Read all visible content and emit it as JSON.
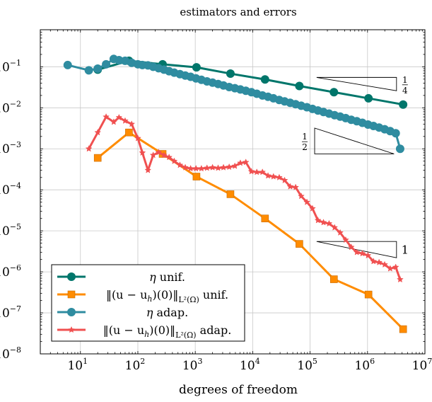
{
  "chart_data": {
    "type": "line",
    "title": "estimators and errors",
    "xlabel": "degrees of freedom",
    "ylabel": "",
    "xscale": "log",
    "yscale": "log",
    "xlim": [
      2,
      10000000
    ],
    "ylim": [
      1e-08,
      0.8
    ],
    "grid": true,
    "legend_position": "bottom-left",
    "x_tick_labels": [
      {
        "value": 10,
        "base": "10",
        "exp": "1"
      },
      {
        "value": 100,
        "base": "10",
        "exp": "2"
      },
      {
        "value": 1000,
        "base": "10",
        "exp": "3"
      },
      {
        "value": 10000,
        "base": "10",
        "exp": "4"
      },
      {
        "value": 100000,
        "base": "10",
        "exp": "5"
      },
      {
        "value": 1000000,
        "base": "10",
        "exp": "6"
      },
      {
        "value": 10000000,
        "base": "10",
        "exp": "7"
      }
    ],
    "y_tick_labels": [
      {
        "value": 1e-08,
        "base": "10",
        "exp": "−8"
      },
      {
        "value": 1e-07,
        "base": "10",
        "exp": "−7"
      },
      {
        "value": 1e-06,
        "base": "10",
        "exp": "−6"
      },
      {
        "value": 1e-05,
        "base": "10",
        "exp": "−5"
      },
      {
        "value": 0.0001,
        "base": "10",
        "exp": "−4"
      },
      {
        "value": 0.001,
        "base": "10",
        "exp": "−3"
      },
      {
        "value": 0.01,
        "base": "10",
        "exp": "−2"
      },
      {
        "value": 0.1,
        "base": "10",
        "exp": "−1"
      }
    ],
    "series": [
      {
        "name": "η unif.",
        "legend": {
          "pre": "η",
          "post": " unif."
        },
        "color": "#00766b",
        "marker": "circle",
        "x": [
          20,
          70,
          270,
          1050,
          4100,
          16400,
          65000,
          260000,
          1040000,
          4170000
        ],
        "y": [
          0.085,
          0.14,
          0.115,
          0.097,
          0.068,
          0.049,
          0.034,
          0.024,
          0.017,
          0.012
        ]
      },
      {
        "name": "‖(u − u_h)(0)‖_{L²(Ω)} unif.",
        "legend": {
          "pre": "‖(u − u",
          "sub1": "h",
          "mid": ")(0)‖",
          "sub2": "L²(Ω)",
          "post": " unif."
        },
        "color": "#ff8c00",
        "marker": "square",
        "x": [
          20,
          70,
          270,
          1050,
          4100,
          16400,
          65000,
          260000,
          1040000,
          4170000
        ],
        "y": [
          0.0006,
          0.0025,
          0.00075,
          0.00021,
          7.8e-05,
          2e-05,
          4.8e-06,
          6.6e-07,
          2.8e-07,
          4e-08
        ]
      },
      {
        "name": "η adap.",
        "legend": {
          "pre": "η",
          "post": " adap."
        },
        "color": "#2f8ca0",
        "marker": "circle",
        "x": [
          6,
          14,
          20,
          28,
          38,
          47,
          60,
          78,
          100,
          120,
          150,
          185,
          230,
          285,
          350,
          430,
          540,
          670,
          830,
          1030,
          1280,
          1600,
          2000,
          2500,
          3100,
          3900,
          4900,
          6100,
          7600,
          9500,
          11800,
          14800,
          18500,
          23000,
          29000,
          36000,
          45000,
          56000,
          70000,
          88000,
          110000,
          137000,
          171000,
          214000,
          267000,
          334000,
          417000,
          521000,
          651000,
          814000,
          1020000,
          1270000,
          1590000,
          1990000,
          2480000,
          3100000,
          3700000
        ],
        "y": [
          0.11,
          0.082,
          0.09,
          0.115,
          0.155,
          0.145,
          0.14,
          0.125,
          0.115,
          0.11,
          0.108,
          0.1,
          0.092,
          0.085,
          0.078,
          0.072,
          0.066,
          0.061,
          0.057,
          0.052,
          0.048,
          0.044,
          0.041,
          0.038,
          0.035,
          0.032,
          0.03,
          0.028,
          0.026,
          0.024,
          0.022,
          0.02,
          0.0185,
          0.017,
          0.0155,
          0.0143,
          0.0132,
          0.0122,
          0.0112,
          0.0103,
          0.0094,
          0.0086,
          0.0079,
          0.0072,
          0.0066,
          0.0061,
          0.0056,
          0.0051,
          0.0047,
          0.0043,
          0.0039,
          0.0036,
          0.0033,
          0.003,
          0.0027,
          0.0024,
          0.001
        ]
      },
      {
        "name": "‖(u − u_h)(0)‖_{L²(Ω)} adap.",
        "legend": {
          "pre": "‖(u − u",
          "sub1": "h",
          "mid": ")(0)‖",
          "sub2": "L²(Ω)",
          "post": " adap."
        },
        "color": "#f05050",
        "marker": "star",
        "x": [
          14,
          20,
          28,
          38,
          47,
          60,
          78,
          100,
          120,
          150,
          185,
          230,
          285,
          350,
          430,
          540,
          670,
          830,
          1030,
          1280,
          1600,
          2000,
          2500,
          3100,
          3900,
          4900,
          6100,
          7600,
          9500,
          11800,
          14800,
          18500,
          23000,
          29000,
          36000,
          45000,
          56000,
          70000,
          88000,
          110000,
          137000,
          171000,
          214000,
          267000,
          334000,
          417000,
          521000,
          651000,
          814000,
          1020000,
          1270000,
          1590000,
          1990000,
          2480000,
          3100000,
          3700000
        ],
        "y": [
          0.001,
          0.0025,
          0.006,
          0.0045,
          0.0058,
          0.0048,
          0.004,
          0.0018,
          0.0008,
          0.0003,
          0.0007,
          0.00082,
          0.0007,
          0.00062,
          0.0005,
          0.0004,
          0.00035,
          0.00033,
          0.00033,
          0.00033,
          0.00034,
          0.00035,
          0.00034,
          0.00035,
          0.00036,
          0.00038,
          0.00045,
          0.00047,
          0.00028,
          0.00027,
          0.00027,
          0.00022,
          0.00021,
          0.0002,
          0.00017,
          0.00012,
          0.000115,
          7e-05,
          5e-05,
          3.5e-05,
          1.8e-05,
          1.6e-05,
          1.5e-05,
          1.2e-05,
          9e-06,
          6e-06,
          4e-06,
          3e-06,
          2.8e-06,
          2.5e-06,
          1.8e-06,
          1.7e-06,
          1.5e-06,
          1.2e-06,
          1.3e-06,
          6.5e-07
        ]
      }
    ],
    "annotations": [
      {
        "kind": "slope-triangle",
        "label": {
          "num": "1",
          "den": "4"
        },
        "x": [
          130000,
          3200000
        ],
        "y": [
          0.055,
          0.026
        ],
        "label_position": "right"
      },
      {
        "kind": "slope-triangle-lower",
        "label": {
          "num": "1",
          "den": "2"
        },
        "x": [
          120000,
          2900000
        ],
        "y": [
          0.0032,
          0.00075
        ],
        "label_position": "left"
      },
      {
        "kind": "slope-triangle",
        "label": {
          "text": "1"
        },
        "x": [
          130000,
          3200000
        ],
        "y": [
          5.5e-06,
          2.2e-06
        ],
        "label_position": "right"
      }
    ]
  }
}
